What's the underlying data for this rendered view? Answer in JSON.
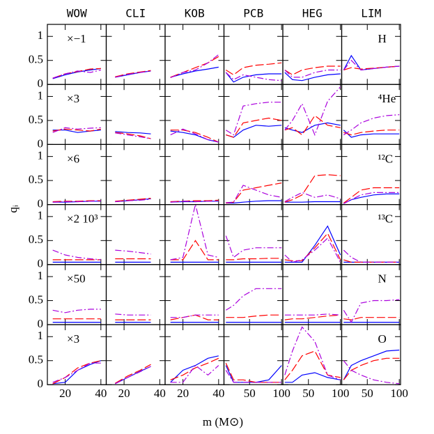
{
  "chart_data": {
    "type": "line-grid",
    "xlabel": "m (M⊙)",
    "ylabel": "qᵢ",
    "series": [
      {
        "color": "#0000ff",
        "dash": "solid"
      },
      {
        "color": "#ff0000",
        "dash": "12 4"
      },
      {
        "color": "#aa00dd",
        "dash": "9 3 2 3"
      }
    ],
    "columns": [
      {
        "name": "WOW",
        "x": [
          13,
          20,
          27,
          34,
          40
        ],
        "xlim": [
          10,
          43
        ],
        "xticks": [
          20,
          40
        ]
      },
      {
        "name": "CLI",
        "x": [
          15,
          22,
          29,
          35
        ],
        "xlim": [
          10,
          43
        ],
        "xticks": [
          20,
          40
        ]
      },
      {
        "name": "KOB",
        "x": [
          13,
          20,
          27,
          34,
          40
        ],
        "xlim": [
          10,
          43
        ],
        "xticks": [
          20,
          40
        ]
      },
      {
        "name": "PCB",
        "x": [
          13,
          25,
          40,
          60,
          80,
          100
        ],
        "xlim": [
          10,
          102
        ],
        "xticks": [
          50,
          100
        ]
      },
      {
        "name": "HEG",
        "x": [
          13,
          25,
          40,
          60,
          80,
          100
        ],
        "xlim": [
          10,
          102
        ],
        "xticks": [
          50,
          100
        ]
      },
      {
        "name": "LIM",
        "x": [
          13,
          25,
          40,
          60,
          80,
          100
        ],
        "xlim": [
          10,
          102
        ],
        "xticks": [
          50,
          100
        ]
      }
    ],
    "rows": [
      {
        "multiplier": "×−1",
        "element": "H",
        "ylim": [
          0,
          1.25
        ],
        "yticks": [
          0,
          0.5,
          1
        ],
        "cells": [
          [
            [
              0.12,
              0.2,
              0.26,
              0.3,
              0.33
            ],
            [
              0.13,
              0.22,
              0.27,
              0.32,
              0.33
            ],
            [
              0.13,
              0.22,
              0.28,
              0.25,
              0.3
            ]
          ],
          [
            [
              0.15,
              0.2,
              0.25,
              0.28
            ],
            [
              0.16,
              0.22,
              0.26,
              0.29
            ],
            [
              0.15,
              0.21,
              0.25,
              0.28
            ]
          ],
          [
            [
              0.15,
              0.22,
              0.28,
              0.32,
              0.36
            ],
            [
              0.15,
              0.25,
              0.35,
              0.45,
              0.58
            ],
            [
              0.14,
              0.25,
              0.3,
              0.45,
              0.62
            ]
          ],
          [
            [
              0.25,
              0.05,
              0.15,
              0.2,
              0.22,
              0.22
            ],
            [
              0.3,
              0.2,
              0.35,
              0.4,
              0.42,
              0.45
            ],
            [
              0.25,
              0.1,
              0.2,
              0.15,
              0.1,
              0.08
            ]
          ],
          [
            [
              0.25,
              0.1,
              0.08,
              0.15,
              0.2,
              0.22
            ],
            [
              0.3,
              0.2,
              0.3,
              0.35,
              0.38,
              0.38
            ],
            [
              0.3,
              0.15,
              0.15,
              0.25,
              0.3,
              0.3
            ]
          ],
          [
            [
              0.3,
              0.6,
              0.3,
              0.33,
              0.36,
              0.38
            ],
            [
              0.3,
              0.35,
              0.32,
              0.34,
              0.36,
              0.38
            ],
            [
              0.3,
              0.5,
              0.3,
              0.33,
              0.36,
              0.38
            ]
          ]
        ]
      },
      {
        "multiplier": "×3",
        "element": "⁴He",
        "ylim": [
          0,
          1.25
        ],
        "yticks": [
          0,
          0.5,
          1
        ],
        "cells": [
          [
            [
              0.3,
              0.3,
              0.25,
              0.28,
              0.3
            ],
            [
              0.28,
              0.32,
              0.3,
              0.28,
              0.32
            ],
            [
              0.25,
              0.35,
              0.32,
              0.34,
              0.35
            ]
          ],
          [
            [
              0.27,
              0.25,
              0.24,
              0.22
            ],
            [
              0.25,
              0.22,
              0.18,
              0.12
            ],
            [
              0.24,
              0.2,
              0.16,
              0.12
            ]
          ],
          [
            [
              0.28,
              0.25,
              0.2,
              0.1,
              0.05
            ],
            [
              0.3,
              0.3,
              0.25,
              0.15,
              0.05
            ],
            [
              0.2,
              0.32,
              0.22,
              0.1,
              0.05
            ]
          ],
          [
            [
              0.2,
              0.15,
              0.3,
              0.4,
              0.38,
              0.4
            ],
            [
              0.2,
              0.15,
              0.45,
              0.5,
              0.55,
              0.5
            ],
            [
              0.3,
              0.2,
              0.8,
              0.85,
              0.88,
              0.88
            ]
          ],
          [
            [
              0.35,
              0.3,
              0.25,
              0.4,
              0.45,
              0.4
            ],
            [
              0.3,
              0.35,
              0.2,
              0.6,
              0.4,
              0.35
            ],
            [
              0.3,
              0.5,
              0.85,
              0.2,
              0.9,
              1.2
            ]
          ],
          [
            [
              0.3,
              0.15,
              0.2,
              0.22,
              0.22,
              0.22
            ],
            [
              0.25,
              0.2,
              0.25,
              0.28,
              0.3,
              0.3
            ],
            [
              0.2,
              0.3,
              0.45,
              0.55,
              0.6,
              0.62
            ]
          ]
        ]
      },
      {
        "multiplier": "×6",
        "element": "¹²C",
        "ylim": [
          0,
          1.25
        ],
        "yticks": [
          0,
          0.5,
          1
        ],
        "cells": [
          [
            [
              0.05,
              0.05,
              0.06,
              0.07,
              0.07
            ],
            [
              0.06,
              0.07,
              0.07,
              0.08,
              0.08
            ],
            [
              0.05,
              0.06,
              0.06,
              0.07,
              0.08
            ]
          ],
          [
            [
              0.06,
              0.08,
              0.1,
              0.12
            ],
            [
              0.07,
              0.09,
              0.11,
              0.13
            ],
            [
              0.06,
              0.08,
              0.09,
              0.11
            ]
          ],
          [
            [
              0.05,
              0.06,
              0.06,
              0.07,
              0.07
            ],
            [
              0.06,
              0.07,
              0.08,
              0.08,
              0.09
            ],
            [
              0.05,
              0.07,
              0.06,
              0.07,
              0.07
            ]
          ],
          [
            [
              0.03,
              0.03,
              0.05,
              0.07,
              0.08,
              0.08
            ],
            [
              0.03,
              0.05,
              0.3,
              0.35,
              0.4,
              0.45
            ],
            [
              0.04,
              0.05,
              0.4,
              0.3,
              0.2,
              0.15
            ]
          ],
          [
            [
              0.05,
              0.05,
              0.05,
              0.06,
              0.06,
              0.06
            ],
            [
              0.05,
              0.1,
              0.2,
              0.6,
              0.62,
              0.6
            ],
            [
              0.06,
              0.15,
              0.25,
              0.15,
              0.2,
              0.12
            ]
          ],
          [
            [
              0.02,
              0.1,
              0.15,
              0.2,
              0.22,
              0.22
            ],
            [
              0.03,
              0.15,
              0.3,
              0.35,
              0.35,
              0.35
            ],
            [
              0.02,
              0.1,
              0.2,
              0.25,
              0.25,
              0.25
            ]
          ]
        ]
      },
      {
        "multiplier": "×2 10³",
        "element": "¹³C",
        "ylim": [
          0,
          1.25
        ],
        "yticks": [
          0,
          0.5,
          1
        ],
        "cells": [
          [
            [
              0.05,
              0.05,
              0.05,
              0.05,
              0.05
            ],
            [
              0.1,
              0.1,
              0.1,
              0.1,
              0.1
            ],
            [
              0.3,
              0.2,
              0.15,
              0.12,
              0.1
            ]
          ],
          [
            [
              0.05,
              0.05,
              0.05,
              0.05
            ],
            [
              0.12,
              0.12,
              0.12,
              0.12
            ],
            [
              0.3,
              0.28,
              0.25,
              0.22
            ]
          ],
          [
            [
              0.05,
              0.05,
              0.05,
              0.05,
              0.05
            ],
            [
              0.1,
              0.1,
              0.5,
              0.1,
              0.1
            ],
            [
              0.1,
              0.15,
              1.25,
              0.2,
              0.15
            ]
          ],
          [
            [
              0.05,
              0.05,
              0.05,
              0.05,
              0.05,
              0.05
            ],
            [
              0.1,
              0.1,
              0.12,
              0.12,
              0.13,
              0.13
            ],
            [
              0.6,
              0.15,
              0.3,
              0.35,
              0.35,
              0.35
            ]
          ],
          [
            [
              0.05,
              0.05,
              0.05,
              0.4,
              0.8,
              0.2
            ],
            [
              0.1,
              0.08,
              0.08,
              0.35,
              0.65,
              0.1
            ],
            [
              0.2,
              0.05,
              0.1,
              0.3,
              0.55,
              0.05
            ]
          ],
          [
            [
              0.05,
              0.05,
              0.05,
              0.05,
              0.05,
              0.05
            ],
            [
              0.1,
              0.05,
              0.05,
              0.05,
              0.05,
              0.05
            ],
            [
              0.3,
              0.15,
              0.05,
              0.05,
              0.05,
              0.05
            ]
          ]
        ]
      },
      {
        "multiplier": "×50",
        "element": "N",
        "ylim": [
          0,
          1.25
        ],
        "yticks": [
          0,
          0.5,
          1
        ],
        "cells": [
          [
            [
              0.05,
              0.05,
              0.05,
              0.05,
              0.05
            ],
            [
              0.12,
              0.12,
              0.12,
              0.12,
              0.12
            ],
            [
              0.3,
              0.25,
              0.3,
              0.32,
              0.32
            ]
          ],
          [
            [
              0.05,
              0.05,
              0.05,
              0.05
            ],
            [
              0.1,
              0.1,
              0.1,
              0.1
            ],
            [
              0.22,
              0.2,
              0.2,
              0.2
            ]
          ],
          [
            [
              0.05,
              0.05,
              0.05,
              0.05,
              0.05
            ],
            [
              0.1,
              0.15,
              0.2,
              0.1,
              0.1
            ],
            [
              0.15,
              0.15,
              0.2,
              0.2,
              0.2
            ]
          ],
          [
            [
              0.05,
              0.05,
              0.05,
              0.05,
              0.05,
              0.05
            ],
            [
              0.15,
              0.15,
              0.15,
              0.18,
              0.2,
              0.2
            ],
            [
              0.3,
              0.4,
              0.6,
              0.75,
              0.75,
              0.75
            ]
          ],
          [
            [
              0.05,
              0.05,
              0.05,
              0.05,
              0.05,
              0.05
            ],
            [
              0.1,
              0.12,
              0.12,
              0.15,
              0.18,
              0.2
            ],
            [
              0.2,
              0.2,
              0.2,
              0.2,
              0.22,
              0.2
            ]
          ],
          [
            [
              0.05,
              0.05,
              0.05,
              0.05,
              0.05,
              0.05
            ],
            [
              0.12,
              0.1,
              0.15,
              0.15,
              0.15,
              0.15
            ],
            [
              0.3,
              0.05,
              0.45,
              0.5,
              0.5,
              0.52
            ]
          ]
        ]
      },
      {
        "multiplier": "×3",
        "element": "O",
        "ylim": [
          0,
          1.25
        ],
        "yticks": [
          0,
          0.5,
          1
        ],
        "cells": [
          [
            [
              0.02,
              0.05,
              0.3,
              0.42,
              0.5
            ],
            [
              0.02,
              0.15,
              0.35,
              0.45,
              0.5
            ],
            [
              0.05,
              0.15,
              0.3,
              0.45,
              0.45
            ]
          ],
          [
            [
              0.02,
              0.15,
              0.28,
              0.38
            ],
            [
              0.03,
              0.18,
              0.3,
              0.42
            ],
            [
              0.02,
              0.15,
              0.27,
              0.38
            ]
          ],
          [
            [
              0.05,
              0.3,
              0.4,
              0.55,
              0.6
            ],
            [
              0.1,
              0.2,
              0.35,
              0.45,
              0.55
            ],
            [
              0.05,
              0.05,
              0.4,
              0.2,
              0.4
            ]
          ],
          [
            [
              0.4,
              0.05,
              0.05,
              0.05,
              0.1,
              0.4
            ],
            [
              0.45,
              0.1,
              0.1,
              0.05,
              0.05,
              0.05
            ],
            [
              0.3,
              0.05,
              0.05,
              0.05,
              0.05,
              0.05
            ]
          ],
          [
            [
              0.05,
              0.05,
              0.2,
              0.25,
              0.15,
              0.1
            ],
            [
              0.1,
              0.3,
              0.6,
              0.7,
              0.2,
              0.15
            ],
            [
              0.2,
              0.7,
              1.2,
              0.9,
              0.2,
              0.1
            ]
          ],
          [
            [
              0.1,
              0.4,
              0.5,
              0.6,
              0.7,
              0.72
            ],
            [
              0.1,
              0.3,
              0.4,
              0.5,
              0.55,
              0.55
            ],
            [
              0.5,
              0.3,
              0.2,
              0.1,
              0.05,
              0.02
            ]
          ]
        ]
      }
    ]
  }
}
